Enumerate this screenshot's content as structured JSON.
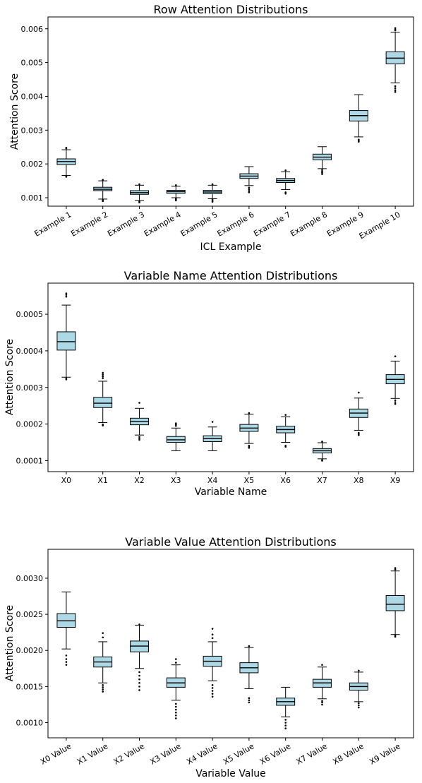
{
  "chart_data": [
    {
      "type": "boxplot",
      "title": "Row Attention Distributions",
      "xlabel": "ICL Example",
      "ylabel": "Attention Score",
      "ylim": [
        0.00075,
        0.00635
      ],
      "yticks": [
        0.001,
        0.002,
        0.003,
        0.004,
        0.005,
        0.006
      ],
      "ytick_labels": [
        "0.001",
        "0.002",
        "0.003",
        "0.004",
        "0.005",
        "0.006"
      ],
      "xtick_rotation": -30,
      "box_color": "#add8e6",
      "categories": [
        "Example 1",
        "Example 2",
        "Example 3",
        "Example 4",
        "Example 5",
        "Example 6",
        "Example 7",
        "Example 8",
        "Example 9",
        "Example 10"
      ],
      "boxes": [
        {
          "whislo": 0.00166,
          "q1": 0.00198,
          "med": 0.00207,
          "q3": 0.00215,
          "whishi": 0.00242,
          "fliers": [
            0.00162,
            0.00164,
            0.00246,
            0.00248
          ]
        },
        {
          "whislo": 0.00096,
          "q1": 0.00121,
          "med": 0.00125,
          "q3": 0.00131,
          "whishi": 0.0015,
          "fliers": [
            0.0009,
            0.00093,
            0.00153
          ]
        },
        {
          "whislo": 0.00092,
          "q1": 0.0011,
          "med": 0.00115,
          "q3": 0.00121,
          "whishi": 0.00137,
          "fliers": [
            0.00086,
            0.00089,
            0.0014
          ]
        },
        {
          "whislo": 0.001,
          "q1": 0.00113,
          "med": 0.00118,
          "q3": 0.00122,
          "whishi": 0.00134,
          "fliers": [
            0.00092,
            0.00095,
            0.00097,
            0.00137
          ]
        },
        {
          "whislo": 0.00097,
          "q1": 0.00112,
          "med": 0.00117,
          "q3": 0.00122,
          "whishi": 0.00137,
          "fliers": [
            0.00088,
            0.00091,
            0.00094,
            0.0014
          ]
        },
        {
          "whislo": 0.00136,
          "q1": 0.00157,
          "med": 0.00164,
          "q3": 0.00171,
          "whishi": 0.00192,
          "fliers": [
            0.00116,
            0.0012,
            0.00125,
            0.0013
          ]
        },
        {
          "whislo": 0.00124,
          "q1": 0.00145,
          "med": 0.00151,
          "q3": 0.00157,
          "whishi": 0.00177,
          "fliers": [
            0.00112,
            0.00116,
            0.00181
          ]
        },
        {
          "whislo": 0.00186,
          "q1": 0.00212,
          "med": 0.0022,
          "q3": 0.00229,
          "whishi": 0.00251,
          "fliers": [
            0.0017,
            0.00174,
            0.00178,
            0.00182
          ]
        },
        {
          "whislo": 0.0028,
          "q1": 0.00327,
          "med": 0.00343,
          "q3": 0.00358,
          "whishi": 0.00405,
          "fliers": [
            0.00266,
            0.00269,
            0.00272
          ]
        },
        {
          "whislo": 0.0044,
          "q1": 0.00496,
          "med": 0.00513,
          "q3": 0.00532,
          "whishi": 0.0059,
          "fliers": [
            0.00413,
            0.00418,
            0.00424,
            0.0043,
            0.00595,
            0.00598,
            0.00602
          ]
        }
      ]
    },
    {
      "type": "boxplot",
      "title": "Variable Name Attention Distributions",
      "xlabel": "Variable Name",
      "ylabel": "Attention Score",
      "ylim": [
        7e-05,
        0.000585
      ],
      "yticks": [
        0.0001,
        0.0002,
        0.0003,
        0.0004,
        0.0005
      ],
      "ytick_labels": [
        "0.0001",
        "0.0002",
        "0.0003",
        "0.0004",
        "0.0005"
      ],
      "xtick_rotation": 0,
      "box_color": "#add8e6",
      "categories": [
        "X0",
        "X1",
        "X2",
        "X3",
        "X4",
        "X5",
        "X6",
        "X7",
        "X8",
        "X9"
      ],
      "boxes": [
        {
          "whislo": 0.000328,
          "q1": 0.000402,
          "med": 0.000425,
          "q3": 0.000452,
          "whishi": 0.000525,
          "fliers": [
            0.000322,
            0.000325,
            0.000548,
            0.000553,
            0.000557
          ]
        },
        {
          "whislo": 0.000204,
          "q1": 0.000245,
          "med": 0.000257,
          "q3": 0.000273,
          "whishi": 0.000317,
          "fliers": [
            0.000196,
            0.000199,
            0.000325,
            0.00033,
            0.000335,
            0.00034
          ]
        },
        {
          "whislo": 0.00017,
          "q1": 0.000198,
          "med": 0.000207,
          "q3": 0.000216,
          "whishi": 0.000243,
          "fliers": [
            0.000157,
            0.000161,
            0.000165,
            0.000258
          ]
        },
        {
          "whislo": 0.000127,
          "q1": 0.00015,
          "med": 0.000157,
          "q3": 0.000166,
          "whishi": 0.000189,
          "fliers": [
            0.000195,
            0.000199,
            0.000202
          ]
        },
        {
          "whislo": 0.000127,
          "q1": 0.000152,
          "med": 0.00016,
          "q3": 0.000168,
          "whishi": 0.000192,
          "fliers": [
            0.000206
          ]
        },
        {
          "whislo": 0.000147,
          "q1": 0.00018,
          "med": 0.000189,
          "q3": 0.000199,
          "whishi": 0.000227,
          "fliers": [
            0.000135,
            0.000138,
            0.000141,
            0.00023
          ]
        },
        {
          "whislo": 0.00015,
          "q1": 0.000176,
          "med": 0.000185,
          "q3": 0.000194,
          "whishi": 0.00022,
          "fliers": [
            0.000138,
            0.000141,
            0.000225
          ]
        },
        {
          "whislo": 0.000105,
          "q1": 0.000121,
          "med": 0.000127,
          "q3": 0.000133,
          "whishi": 0.000149,
          "fliers": [
            0.0001,
            0.000102,
            0.000152
          ]
        },
        {
          "whislo": 0.000183,
          "q1": 0.000218,
          "med": 0.00023,
          "q3": 0.000241,
          "whishi": 0.000271,
          "fliers": [
            0.00017,
            0.000173,
            0.000176,
            0.000286
          ]
        },
        {
          "whislo": 0.00027,
          "q1": 0.00031,
          "med": 0.000322,
          "q3": 0.000335,
          "whishi": 0.000372,
          "fliers": [
            0.000255,
            0.00026,
            0.000265,
            0.000385
          ]
        }
      ]
    },
    {
      "type": "boxplot",
      "title": "Variable Value Attention Distributions",
      "xlabel": "Variable Value",
      "ylabel": "Attention Score",
      "ylim": [
        0.00079,
        0.0034
      ],
      "yticks": [
        0.001,
        0.0015,
        0.002,
        0.0025,
        0.003
      ],
      "ytick_labels": [
        "0.0010",
        "0.0015",
        "0.0020",
        "0.0025",
        "0.0030"
      ],
      "xtick_rotation": -30,
      "box_color": "#add8e6",
      "categories": [
        "X0 Value",
        "X1 Value",
        "X2 Value",
        "X3 Value",
        "X4 Value",
        "X5 Value",
        "X6 Value",
        "X7 Value",
        "X8 Value",
        "X9 Value"
      ],
      "boxes": [
        {
          "whislo": 0.00202,
          "q1": 0.00232,
          "med": 0.00241,
          "q3": 0.00251,
          "whishi": 0.00281,
          "fliers": [
            0.0018,
            0.00184,
            0.00188,
            0.00193
          ]
        },
        {
          "whislo": 0.00155,
          "q1": 0.00177,
          "med": 0.00184,
          "q3": 0.00191,
          "whishi": 0.00212,
          "fliers": [
            0.00143,
            0.00146,
            0.00149,
            0.00152,
            0.00218,
            0.00224
          ]
        },
        {
          "whislo": 0.00175,
          "q1": 0.00198,
          "med": 0.00206,
          "q3": 0.00213,
          "whishi": 0.00235,
          "fliers": [
            0.00145,
            0.0015,
            0.00155,
            0.0016,
            0.00165,
            0.0017,
            0.00236
          ]
        },
        {
          "whislo": 0.00131,
          "q1": 0.00149,
          "med": 0.00155,
          "q3": 0.00162,
          "whishi": 0.0018,
          "fliers": [
            0.00106,
            0.0011,
            0.00114,
            0.00118,
            0.00122,
            0.00126,
            0.00183,
            0.00188
          ]
        },
        {
          "whislo": 0.00158,
          "q1": 0.00178,
          "med": 0.00185,
          "q3": 0.00192,
          "whishi": 0.00212,
          "fliers": [
            0.00136,
            0.0014,
            0.00144,
            0.00148,
            0.00152,
            0.00217,
            0.00222,
            0.0023
          ]
        },
        {
          "whislo": 0.00147,
          "q1": 0.00169,
          "med": 0.00176,
          "q3": 0.00183,
          "whishi": 0.00204,
          "fliers": [
            0.00128,
            0.00131,
            0.00134,
            0.00206
          ]
        },
        {
          "whislo": 0.00108,
          "q1": 0.00124,
          "med": 0.00129,
          "q3": 0.00134,
          "whishi": 0.00149,
          "fliers": [
            0.00092,
            0.00096,
            0.001,
            0.00104
          ]
        },
        {
          "whislo": 0.00133,
          "q1": 0.00149,
          "med": 0.00155,
          "q3": 0.0016,
          "whishi": 0.00177,
          "fliers": [
            0.00125,
            0.00128,
            0.0013,
            0.0018
          ]
        },
        {
          "whislo": 0.00129,
          "q1": 0.00145,
          "med": 0.0015,
          "q3": 0.00155,
          "whishi": 0.0017,
          "fliers": [
            0.00121,
            0.00124,
            0.00127,
            0.00172
          ]
        },
        {
          "whislo": 0.00222,
          "q1": 0.00255,
          "med": 0.00264,
          "q3": 0.00276,
          "whishi": 0.0031,
          "fliers": [
            0.00219,
            0.00221,
            0.00312,
            0.00314
          ]
        }
      ]
    }
  ]
}
